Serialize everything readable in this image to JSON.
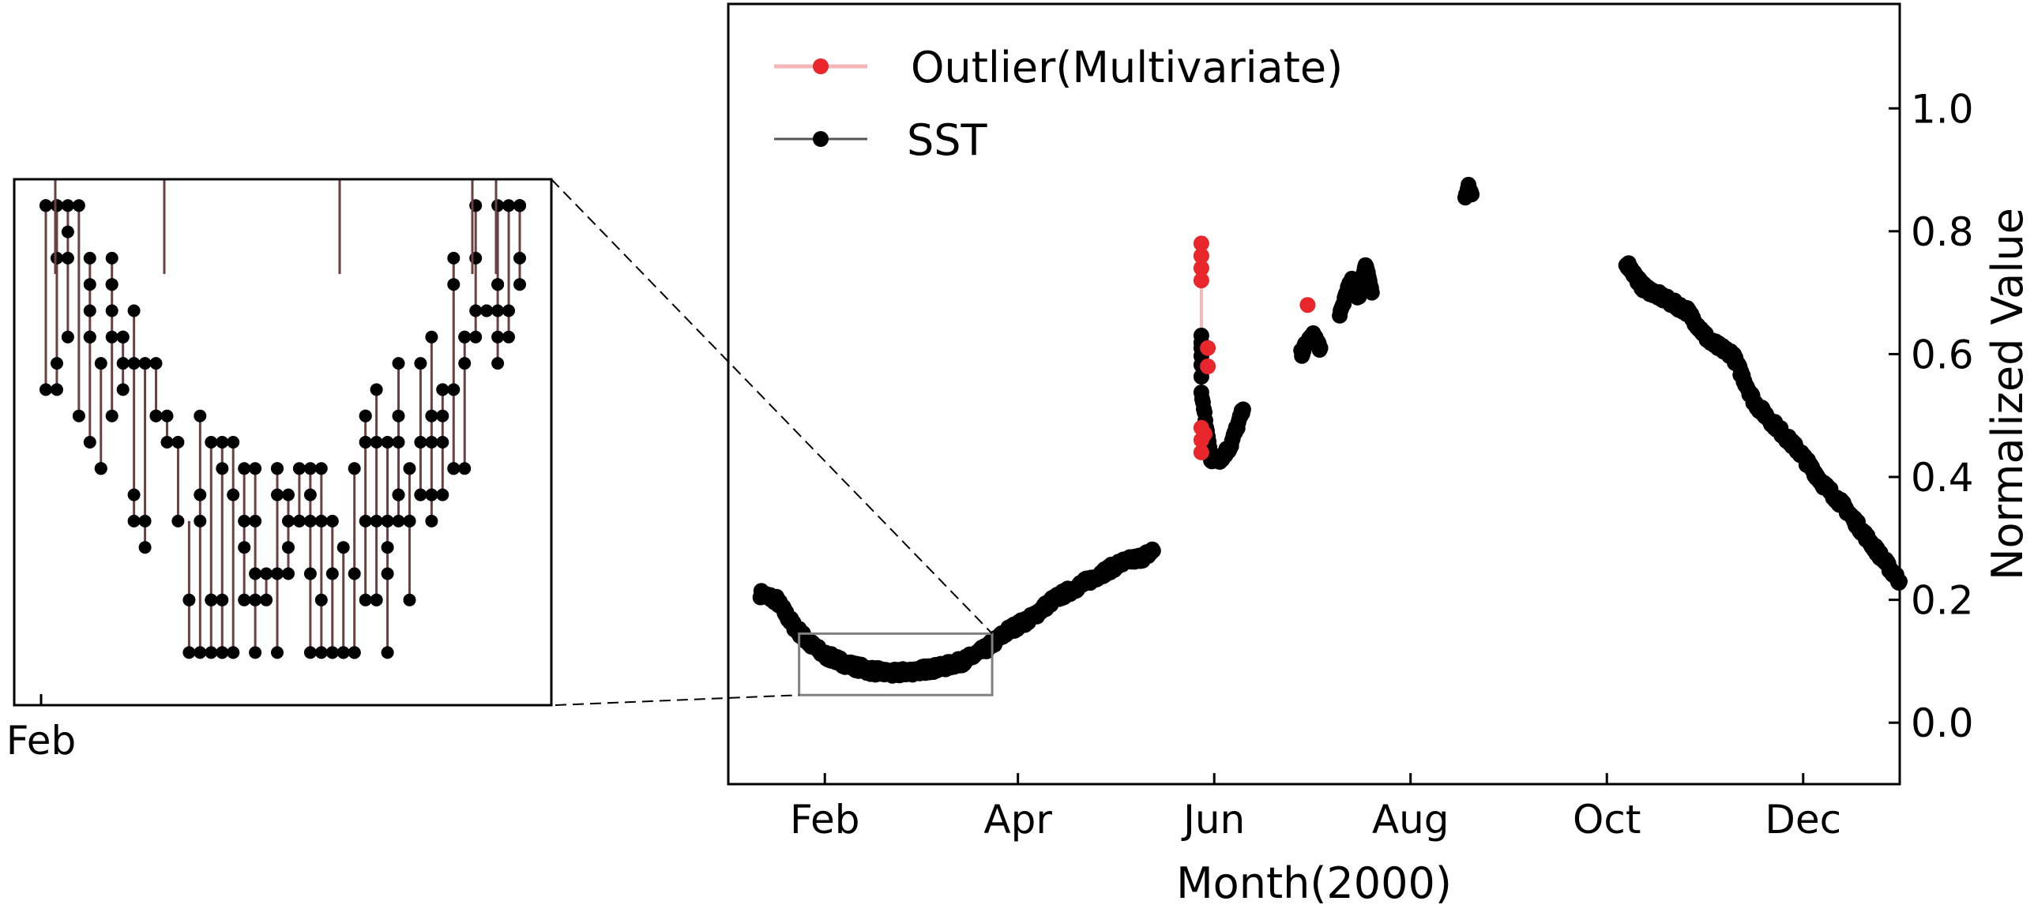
{
  "chart_data": {
    "type": "scatter",
    "title": "",
    "xlabel": "Month(2000)",
    "ylabel": "Normalized Value",
    "x_ticks": [
      "Feb",
      "Apr",
      "Jun",
      "Aug",
      "Oct",
      "Dec"
    ],
    "x_tick_dates": [
      "2000-02-01",
      "2000-04-01",
      "2000-06-01",
      "2000-08-01",
      "2000-10-01",
      "2000-12-01"
    ],
    "xlim": [
      "2000-01-02",
      "2000-12-31"
    ],
    "y_ticks": [
      "0.0",
      "0.2",
      "0.4",
      "0.6",
      "0.8",
      "1.0"
    ],
    "y_tick_values": [
      0.0,
      0.2,
      0.4,
      0.6,
      0.8,
      1.0
    ],
    "ylim": [
      -0.1,
      1.17
    ],
    "y_axis_side": "right",
    "grid": false,
    "legend_position": "top-left",
    "colors": {
      "sst": "#000000",
      "outlier": "#e8262b",
      "outlier_line": "#f4b6b6",
      "zoom_box": "#808080"
    },
    "series": [
      {
        "name": "Outlier(Multivariate)",
        "marker": "circle",
        "points": [
          {
            "x": "2000-05-28",
            "y": 0.78
          },
          {
            "x": "2000-05-28",
            "y": 0.76
          },
          {
            "x": "2000-05-28",
            "y": 0.74
          },
          {
            "x": "2000-05-28",
            "y": 0.72
          },
          {
            "x": "2000-05-28",
            "y": 0.48
          },
          {
            "x": "2000-05-28",
            "y": 0.46
          },
          {
            "x": "2000-05-28",
            "y": 0.44
          },
          {
            "x": "2000-05-29",
            "y": 0.47
          },
          {
            "x": "2000-05-30",
            "y": 0.61
          },
          {
            "x": "2000-05-30",
            "y": 0.58
          },
          {
            "x": "2000-06-30",
            "y": 0.68
          }
        ]
      },
      {
        "name": "SST",
        "marker": "circle",
        "segments": [
          {
            "points": [
              {
                "x": "2000-01-12",
                "y": 0.21
              },
              {
                "x": "2000-01-17",
                "y": 0.2
              },
              {
                "x": "2000-01-22",
                "y": 0.16
              },
              {
                "x": "2000-01-27",
                "y": 0.13
              },
              {
                "x": "2000-02-01",
                "y": 0.11
              },
              {
                "x": "2000-02-08",
                "y": 0.095
              },
              {
                "x": "2000-02-15",
                "y": 0.085
              },
              {
                "x": "2000-02-22",
                "y": 0.08
              },
              {
                "x": "2000-03-01",
                "y": 0.085
              },
              {
                "x": "2000-03-08",
                "y": 0.09
              },
              {
                "x": "2000-03-15",
                "y": 0.1
              },
              {
                "x": "2000-03-22",
                "y": 0.12
              },
              {
                "x": "2000-03-29",
                "y": 0.15
              },
              {
                "x": "2000-04-05",
                "y": 0.17
              },
              {
                "x": "2000-04-12",
                "y": 0.2
              },
              {
                "x": "2000-04-19",
                "y": 0.22
              },
              {
                "x": "2000-04-26",
                "y": 0.24
              },
              {
                "x": "2000-05-03",
                "y": 0.26
              },
              {
                "x": "2000-05-10",
                "y": 0.27
              },
              {
                "x": "2000-05-13",
                "y": 0.28
              }
            ]
          },
          {
            "points": [
              {
                "x": "2000-05-28",
                "y": 0.63
              },
              {
                "x": "2000-05-28",
                "y": 0.6
              },
              {
                "x": "2000-05-28",
                "y": 0.54
              },
              {
                "x": "2000-05-29",
                "y": 0.5
              },
              {
                "x": "2000-05-31",
                "y": 0.43
              },
              {
                "x": "2000-06-03",
                "y": 0.43
              },
              {
                "x": "2000-06-06",
                "y": 0.45
              },
              {
                "x": "2000-06-08",
                "y": 0.48
              },
              {
                "x": "2000-06-10",
                "y": 0.51
              }
            ]
          },
          {
            "points": [
              {
                "x": "2000-06-28",
                "y": 0.6
              },
              {
                "x": "2000-06-30",
                "y": 0.62
              },
              {
                "x": "2000-07-02",
                "y": 0.63
              },
              {
                "x": "2000-07-04",
                "y": 0.61
              }
            ]
          },
          {
            "points": [
              {
                "x": "2000-07-10",
                "y": 0.66
              },
              {
                "x": "2000-07-12",
                "y": 0.7
              },
              {
                "x": "2000-07-14",
                "y": 0.72
              },
              {
                "x": "2000-07-16",
                "y": 0.69
              },
              {
                "x": "2000-07-18",
                "y": 0.75
              },
              {
                "x": "2000-07-20",
                "y": 0.7
              }
            ]
          },
          {
            "points": [
              {
                "x": "2000-08-18",
                "y": 0.85
              },
              {
                "x": "2000-08-19",
                "y": 0.87
              },
              {
                "x": "2000-08-20",
                "y": 0.86
              }
            ]
          },
          {
            "points": [
              {
                "x": "2000-10-07",
                "y": 0.75
              },
              {
                "x": "2000-10-12",
                "y": 0.71
              },
              {
                "x": "2000-10-19",
                "y": 0.69
              },
              {
                "x": "2000-10-26",
                "y": 0.67
              },
              {
                "x": "2000-11-02",
                "y": 0.62
              },
              {
                "x": "2000-11-09",
                "y": 0.6
              },
              {
                "x": "2000-11-16",
                "y": 0.52
              },
              {
                "x": "2000-11-23",
                "y": 0.48
              },
              {
                "x": "2000-11-30",
                "y": 0.44
              },
              {
                "x": "2000-12-07",
                "y": 0.39
              },
              {
                "x": "2000-12-14",
                "y": 0.35
              },
              {
                "x": "2000-12-21",
                "y": 0.3
              },
              {
                "x": "2000-12-31",
                "y": 0.23
              }
            ]
          }
        ]
      }
    ],
    "zoom_region": {
      "x_range": [
        "2000-01-24",
        "2000-03-24"
      ],
      "y_range": [
        0.045,
        0.145
      ]
    },
    "inset": {
      "x_ticks": [
        "Feb"
      ],
      "ylim": [
        0.06,
        0.11
      ]
    }
  }
}
